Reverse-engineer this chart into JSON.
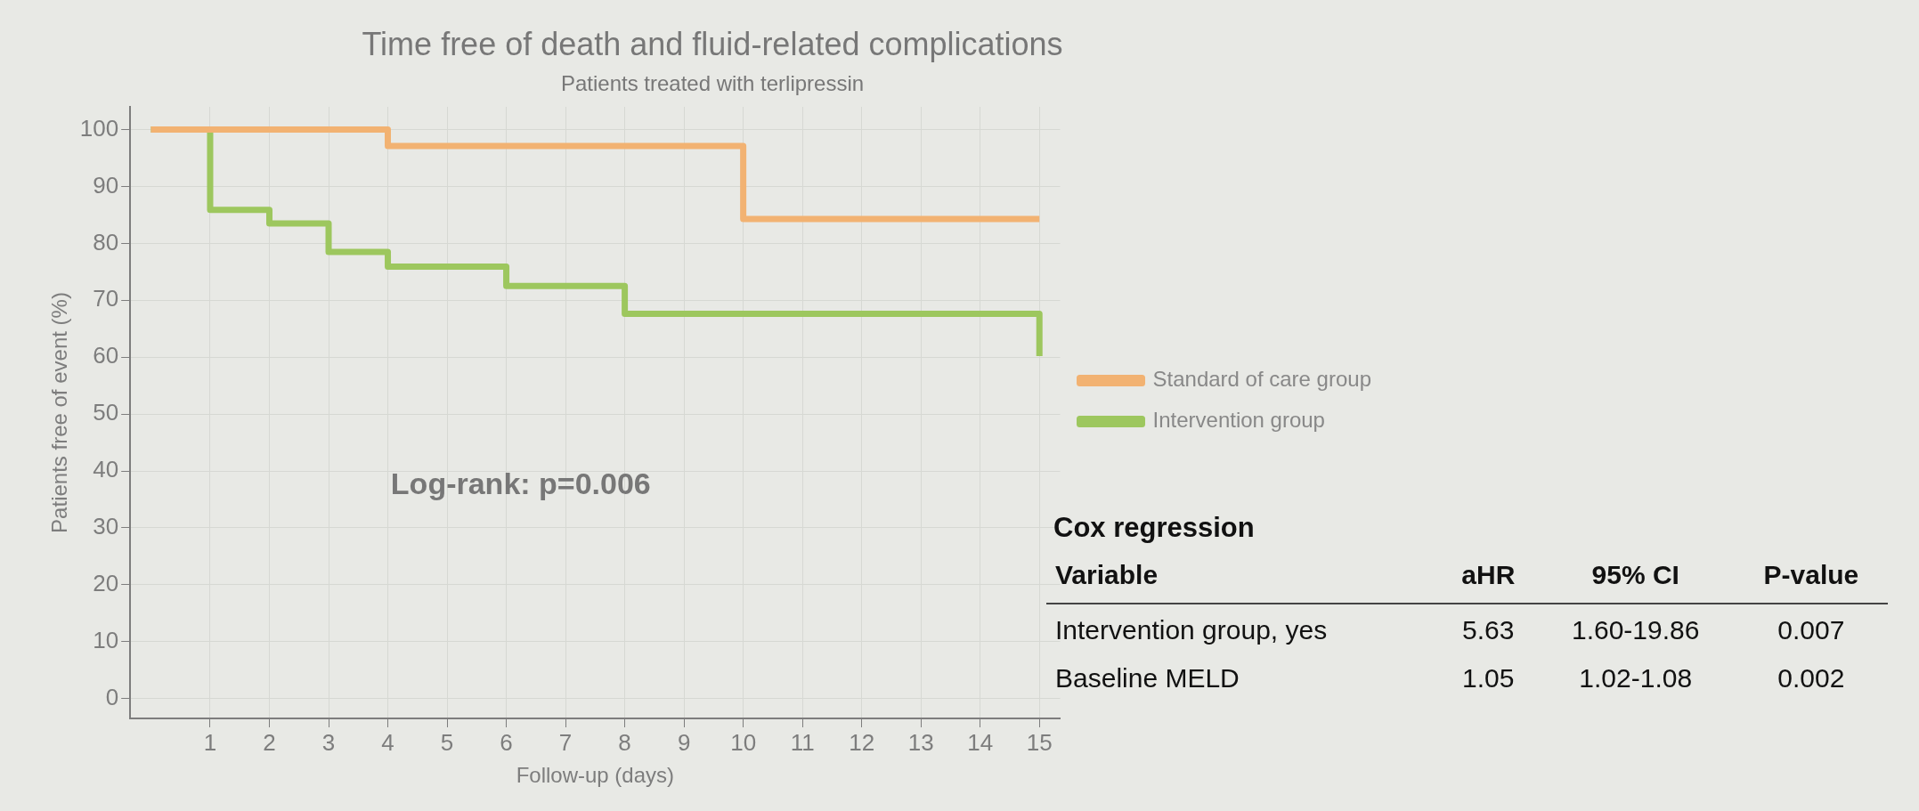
{
  "chart_data": [
    {
      "type": "step",
      "title": "Time free of death and fluid-related complications",
      "subtitle": "Patients treated with terlipressin",
      "xlabel": "Follow-up (days)",
      "ylabel": "Patients free of event (%)",
      "xlim": [
        -0.35,
        15.35
      ],
      "xticks": [
        1,
        2,
        3,
        4,
        5,
        6,
        7,
        8,
        9,
        10,
        11,
        12,
        13,
        14,
        15
      ],
      "ylim": [
        -3.5,
        104
      ],
      "yticks": [
        0,
        10,
        20,
        30,
        40,
        50,
        60,
        70,
        80,
        90,
        100
      ],
      "series": [
        {
          "name": "Standard of care group",
          "color": "#f2b272",
          "x": [
            0,
            4,
            10,
            15
          ],
          "values": [
            100,
            97.1,
            84.3,
            84.3
          ]
        },
        {
          "name": "Intervention group",
          "color": "#9dc75e",
          "x": [
            0,
            1,
            2,
            3,
            4,
            6,
            8,
            15
          ],
          "values": [
            100,
            85.9,
            83.5,
            78.5,
            75.9,
            72.5,
            67.6,
            60.2
          ]
        }
      ],
      "annotations": [
        "Log-rank: p=0.006"
      ],
      "grid": true,
      "legend": "right",
      "marker": "none",
      "line_style": "solid"
    },
    {
      "type": "other",
      "title": "Cox regression",
      "categories": [
        "Variable",
        "aHR",
        "95% CI",
        "P-value"
      ],
      "annotations": [
        "Intervention group, yes",
        "5.63",
        "1.60-19.86",
        "0.007",
        "Baseline MELD",
        "1.05",
        "1.02-1.08",
        "0.002"
      ]
    }
  ]
}
